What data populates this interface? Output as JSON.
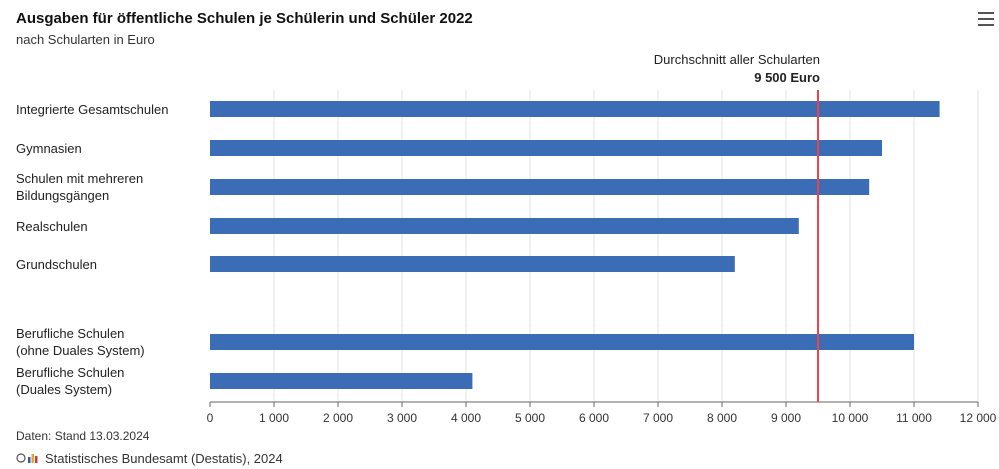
{
  "header": {
    "title": "Ausgaben für öffentliche Schulen je Schülerin und Schüler 2022",
    "subtitle": "nach Schularten in Euro"
  },
  "average": {
    "label": "Durchschnitt aller Schularten",
    "value_label": "9 500 Euro",
    "value": 9500,
    "color": "#e8454d"
  },
  "chart_data": {
    "type": "bar",
    "orientation": "horizontal",
    "title": "Ausgaben für öffentliche Schulen je Schülerin und Schüler 2022",
    "subtitle": "nach Schularten in Euro",
    "categories": [
      [
        "Integrierte Gesamtschulen"
      ],
      [
        "Gymnasien"
      ],
      [
        "Schulen mit mehreren",
        "Bildungsgängen"
      ],
      [
        "Realschulen"
      ],
      [
        "Grundschulen"
      ],
      [
        "Berufliche Schulen",
        "(ohne Duales System)"
      ],
      [
        "Berufliche Schulen",
        "(Duales System)"
      ]
    ],
    "values": [
      11400,
      10500,
      10300,
      9200,
      8200,
      11000,
      4100
    ],
    "xlim": [
      0,
      12000
    ],
    "ticks": [
      0,
      1000,
      2000,
      3000,
      4000,
      5000,
      6000,
      7000,
      8000,
      9000,
      10000,
      11000,
      12000
    ],
    "tick_labels": [
      "0",
      "1 000",
      "2 000",
      "3 000",
      "4 000",
      "5 000",
      "6 000",
      "7 000",
      "8 000",
      "9 000",
      "10 000",
      "11 000",
      "12 000"
    ],
    "reference_line": 9500,
    "bar_color": "#3a6db5",
    "grid": true,
    "xlabel": "",
    "ylabel": ""
  },
  "footer": {
    "source": "Daten: Stand 13.03.2024",
    "credit": "Statistisches Bundesamt (Destatis), 2024"
  }
}
